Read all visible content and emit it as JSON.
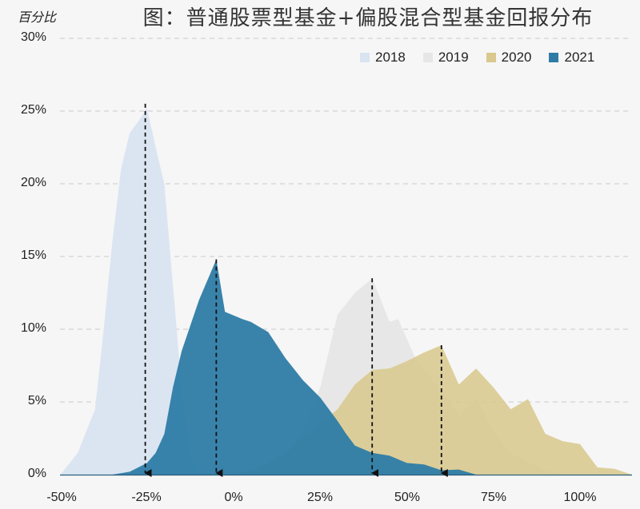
{
  "chart": {
    "title": "图：普通股票型基金+偏股混合型基金回报分布",
    "y_unit_label": "百分比",
    "y_ticks": [
      "30%",
      "25%",
      "20%",
      "15%",
      "10%",
      "5%",
      "0%"
    ],
    "x_ticks": [
      "-50%",
      "-25%",
      "0%",
      "25%",
      "50%",
      "75%",
      "100%"
    ],
    "legend": [
      {
        "label": "2018",
        "color": "#d9e4f1"
      },
      {
        "label": "2019",
        "color": "#e6e6e6"
      },
      {
        "label": "2020",
        "color": "#d9c98e"
      },
      {
        "label": "2021",
        "color": "#2e7ca6"
      }
    ]
  },
  "chart_data": {
    "type": "area",
    "title": "图：普通股票型基金+偏股混合型基金回报分布",
    "xlabel": "",
    "ylabel": "百分比",
    "xlim": [
      -50,
      115
    ],
    "ylim": [
      0,
      30
    ],
    "grid": "horizontal dashed",
    "legend_position": "top-right",
    "x_ticks": [
      -50,
      -25,
      0,
      25,
      50,
      75,
      100
    ],
    "y_ticks": [
      0,
      5,
      10,
      15,
      20,
      25,
      30
    ],
    "series": [
      {
        "name": "2018",
        "color": "#d9e4f1",
        "x": [
          -50,
          -45,
          -40,
          -37.5,
          -35,
          -32.5,
          -30,
          -27.5,
          -25,
          -22.5,
          -20,
          -17.5,
          -15,
          -12.5,
          -10,
          -5
        ],
        "y": [
          0,
          1.5,
          4.5,
          10,
          16,
          21,
          23.5,
          24.3,
          25.2,
          22.5,
          20,
          13,
          6,
          1.5,
          0.3,
          0
        ],
        "median_marker": -25.5
      },
      {
        "name": "2019",
        "color": "#e6e6e6",
        "x": [
          10,
          15,
          20,
          25,
          30,
          35,
          40,
          45,
          47.5,
          52.5,
          57.5,
          62.5,
          65,
          70,
          75,
          80,
          90,
          95
        ],
        "y": [
          0,
          1,
          3,
          6,
          11,
          12.5,
          13.5,
          10.5,
          10.7,
          8,
          6.5,
          5,
          4,
          5.3,
          3,
          1.5,
          0.3,
          0
        ],
        "median_marker": 40
      },
      {
        "name": "2020",
        "color": "#d9c98e",
        "x": [
          0,
          5,
          10,
          15,
          20,
          25,
          30,
          35,
          40,
          45,
          50,
          55,
          60,
          65,
          70,
          75,
          80,
          85,
          90,
          95,
          100,
          105,
          110,
          115
        ],
        "y": [
          0,
          0.3,
          0.8,
          1.5,
          2.5,
          3.5,
          4.5,
          6.2,
          7.2,
          7.3,
          7.8,
          8.4,
          8.9,
          6.2,
          7.3,
          6,
          4.5,
          5.2,
          2.8,
          2.3,
          2.1,
          0.5,
          0.4,
          0
        ],
        "median_marker": 60
      },
      {
        "name": "2021",
        "color": "#2e7ca6",
        "x": [
          -35,
          -30,
          -25,
          -22.5,
          -20,
          -17.5,
          -15,
          -10,
          -5,
          -2.5,
          2.5,
          5,
          10,
          15,
          20,
          25,
          30,
          32.5,
          35,
          40,
          45,
          50,
          55,
          60,
          65,
          70
        ],
        "y": [
          0,
          0.2,
          0.8,
          1.5,
          2.8,
          6,
          8.5,
          12,
          14.8,
          11.2,
          10.7,
          10.5,
          9.8,
          8,
          6.5,
          5.3,
          3.7,
          2.8,
          2,
          1.5,
          1.3,
          0.8,
          0.7,
          0.3,
          0.35,
          0
        ],
        "median_marker": -5
      }
    ],
    "annotations": [
      {
        "type": "dashed-arrow",
        "x": -25.5,
        "from_y": 25.5,
        "to_y": 0
      },
      {
        "type": "dashed-arrow",
        "x": -5,
        "from_y": 14.8,
        "to_y": 0
      },
      {
        "type": "dashed-arrow",
        "x": 40,
        "from_y": 13.5,
        "to_y": 0
      },
      {
        "type": "dashed-arrow",
        "x": 60,
        "from_y": 8.9,
        "to_y": 0
      }
    ]
  }
}
